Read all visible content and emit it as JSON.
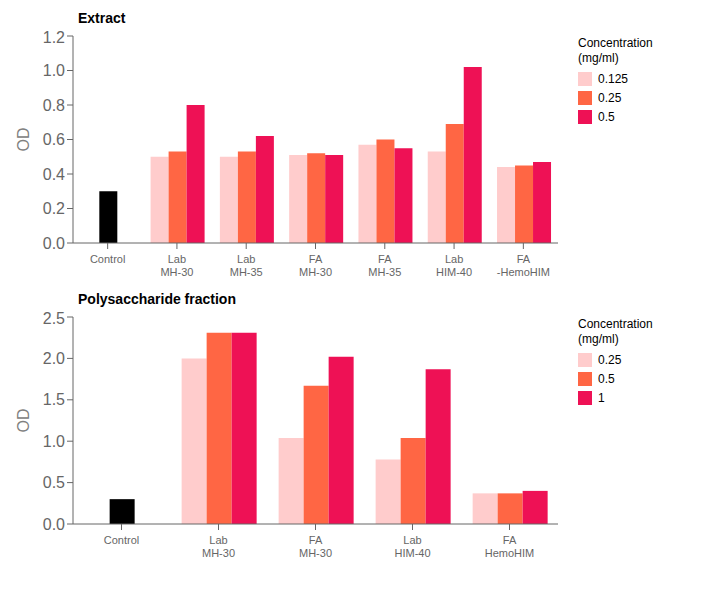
{
  "chart_data": [
    {
      "type": "bar",
      "title": "Extract",
      "y_label": "OD",
      "categories": [
        "Control",
        "Lab\nMH-30",
        "Lab\nMH-35",
        "FA\nMH-30",
        "FA\nMH-35",
        "Lab\nHIM-40",
        "FA\n-HemoHIM"
      ],
      "control_value": 0.3,
      "control_color": "#000000",
      "series": [
        {
          "name": "0.125",
          "color": "#FFCCCC",
          "values": [
            null,
            0.5,
            0.5,
            0.51,
            0.57,
            0.53,
            0.44
          ]
        },
        {
          "name": "0.25",
          "color": "#FF6644",
          "values": [
            null,
            0.53,
            0.53,
            0.52,
            0.6,
            0.69,
            0.45
          ]
        },
        {
          "name": "0.5",
          "color": "#EE1155",
          "values": [
            null,
            0.8,
            0.62,
            0.51,
            0.55,
            1.02,
            0.47
          ]
        }
      ],
      "legend_title": "Concentration\n(mg/ml)",
      "legend": "right",
      "ylim": [
        0,
        1.2
      ],
      "yticks": [
        {
          "value": 0,
          "label": "0.0"
        },
        0.2,
        0.4,
        0.6,
        0.8,
        {
          "value": 1.0,
          "label": "1.0"
        },
        1.2
      ],
      "grid": false
    },
    {
      "type": "bar",
      "title": "Polysaccharide fraction",
      "y_label": "OD",
      "categories": [
        "Control",
        "Lab\nMH-30",
        "FA\nMH-30",
        "Lab\nHIM-40",
        "FA\nHemoHIM"
      ],
      "control_value": 0.3,
      "control_color": "#000000",
      "series": [
        {
          "name": "0.25",
          "color": "#FFCCCC",
          "values": [
            null,
            2.0,
            1.04,
            0.78,
            0.37
          ]
        },
        {
          "name": "0.5",
          "color": "#FF6644",
          "values": [
            null,
            2.31,
            1.67,
            1.04,
            0.37
          ]
        },
        {
          "name": "1",
          "color": "#EE1155",
          "values": [
            null,
            2.31,
            2.02,
            1.87,
            0.4
          ]
        }
      ],
      "legend_title": "Concentration\n(mg/ml)",
      "legend": "right",
      "ylim": [
        0,
        2.5
      ],
      "yticks": [
        {
          "value": 0,
          "label": "0.0"
        },
        0.5,
        {
          "value": 1.0,
          "label": "1.0"
        },
        1.5,
        {
          "value": 2.0,
          "label": "2.0"
        },
        2.5
      ],
      "grid": false
    }
  ]
}
